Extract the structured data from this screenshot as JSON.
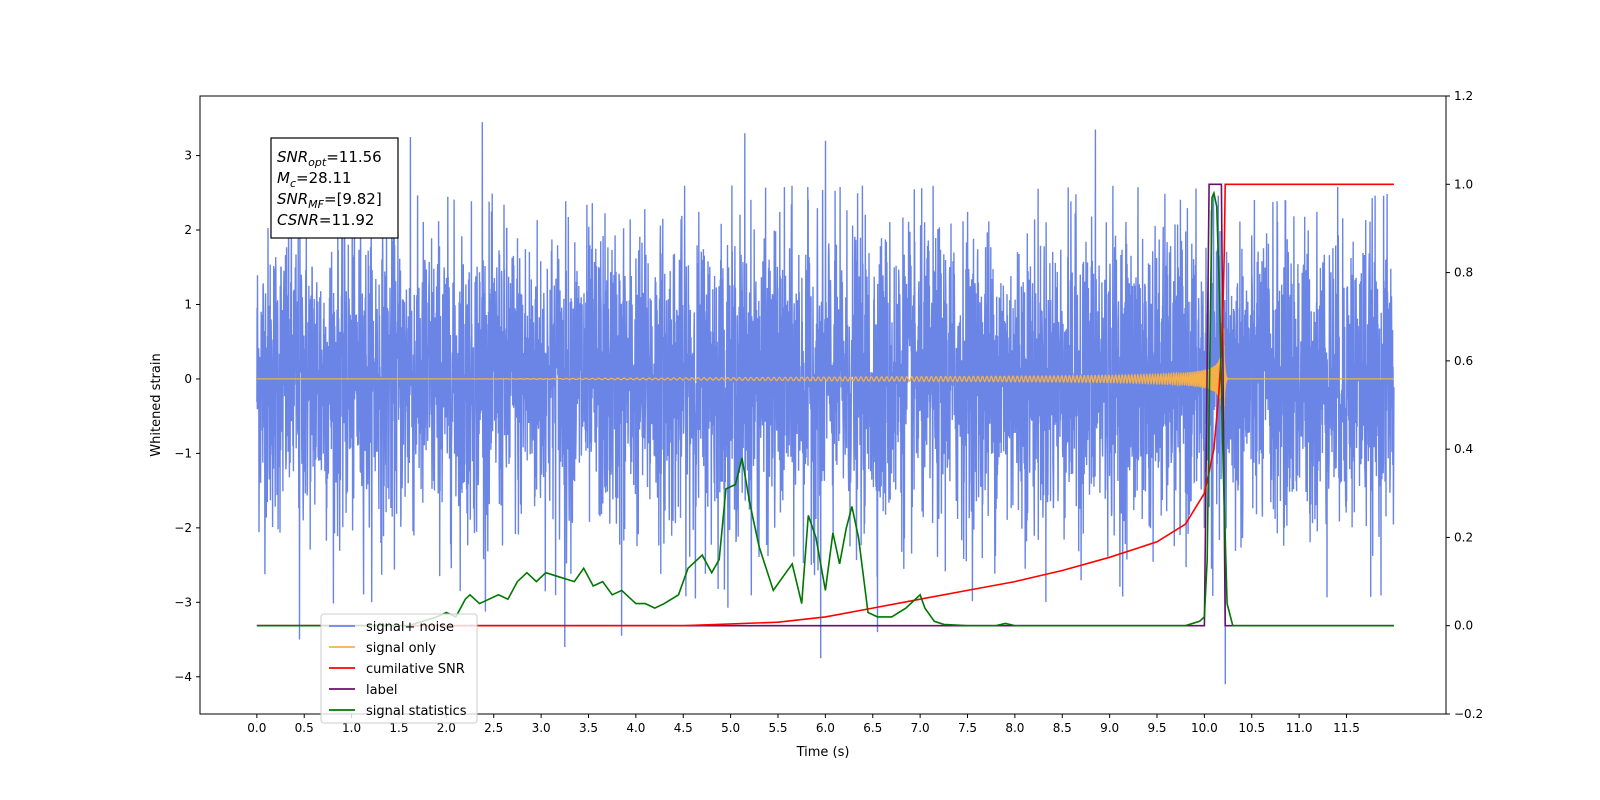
{
  "chart_data": {
    "type": "line",
    "xlabel": "Time (s)",
    "ylabel": "Whitened strain",
    "xlim": [
      -0.6,
      12.55
    ],
    "ylim": [
      -4.5,
      3.8
    ],
    "ylim_right": [
      -0.2,
      1.2
    ],
    "x_ticks": [
      0.0,
      0.5,
      1.0,
      1.5,
      2.0,
      2.5,
      3.0,
      3.5,
      4.0,
      4.5,
      5.0,
      5.5,
      6.0,
      6.5,
      7.0,
      7.5,
      8.0,
      8.5,
      9.0,
      9.5,
      10.0,
      10.5,
      11.0,
      11.5
    ],
    "x_tick_labels": [
      "0.0",
      "0.5",
      "1.0",
      "1.5",
      "2.0",
      "2.5",
      "3.0",
      "3.5",
      "4.0",
      "4.5",
      "5.0",
      "5.5",
      "6.0",
      "6.5",
      "7.0",
      "7.5",
      "8.0",
      "8.5",
      "9.0",
      "9.5",
      "10.0",
      "10.5",
      "11.0",
      "11.5"
    ],
    "y_ticks": [
      -4,
      -3,
      -2,
      -1,
      0,
      1,
      2,
      3
    ],
    "y_tick_labels": [
      "−4",
      "−3",
      "−2",
      "−1",
      "0",
      "1",
      "2",
      "3"
    ],
    "y_right_ticks": [
      -0.2,
      0.0,
      0.2,
      0.4,
      0.6,
      0.8,
      1.0,
      1.2
    ],
    "y_right_tick_labels": [
      "−0.2",
      "0.0",
      "0.2",
      "0.4",
      "0.6",
      "0.8",
      "1.0",
      "1.2"
    ],
    "legend": {
      "placement": "lower-left",
      "entries": [
        {
          "label": "signal+ noise",
          "color": "#6a85e6"
        },
        {
          "label": "signal only",
          "color": "#f5b04a"
        },
        {
          "label": "cumilative SNR",
          "color": "#ff0000"
        },
        {
          "label": "label",
          "color": "#6b0f6b"
        },
        {
          "label": "signal statistics",
          "color": "#007700"
        }
      ]
    },
    "annotation": {
      "lines": [
        {
          "sym": "SNR",
          "sub": "opt",
          "value": "=11.56"
        },
        {
          "sym": "M",
          "sub": "c",
          "value": "=28.11"
        },
        {
          "sym": "SNR",
          "sub": "MF",
          "value": "=[9.82]"
        },
        {
          "sym": "CSNR",
          "sub": "",
          "value": "=11.92"
        }
      ]
    },
    "series": [
      {
        "name": "signal+ noise",
        "axis": "left",
        "color": "#6a85e6",
        "x_range": [
          0.0,
          12.0
        ],
        "noise_std": 1.0,
        "peaks": [
          {
            "x": 2.38,
            "y": 3.45
          },
          {
            "x": 1.62,
            "y": 3.25
          },
          {
            "x": 5.15,
            "y": 3.3
          },
          {
            "x": 8.85,
            "y": 3.35
          },
          {
            "x": 6.0,
            "y": 3.2
          },
          {
            "x": 0.45,
            "y": -3.5
          },
          {
            "x": 3.25,
            "y": -3.6
          },
          {
            "x": 5.95,
            "y": -3.75
          },
          {
            "x": 10.22,
            "y": -4.1
          },
          {
            "x": 3.85,
            "y": -3.45
          },
          {
            "x": 6.55,
            "y": -3.4
          }
        ]
      },
      {
        "name": "signal only",
        "axis": "left",
        "color": "#f5b04a",
        "x_range": [
          0.0,
          12.0
        ],
        "merger_time": 10.2,
        "peak_amplitude": 1.1
      },
      {
        "name": "cumilative SNR",
        "axis": "right",
        "x": [
          0.0,
          4.5,
          5.5,
          6.0,
          6.5,
          7.0,
          7.5,
          8.0,
          8.5,
          9.0,
          9.5,
          9.8,
          10.0,
          10.1,
          10.15,
          10.18,
          10.2,
          10.21,
          10.22,
          12.0
        ],
        "y": [
          0.0,
          0.0,
          0.008,
          0.02,
          0.04,
          0.06,
          0.08,
          0.1,
          0.125,
          0.155,
          0.19,
          0.23,
          0.3,
          0.4,
          0.52,
          0.62,
          0.75,
          0.85,
          1.0,
          1.0
        ]
      },
      {
        "name": "label",
        "axis": "right",
        "x": [
          0.0,
          10.0,
          10.05,
          10.18,
          10.22,
          12.0
        ],
        "y": [
          0.0,
          0.0,
          1.0,
          1.0,
          0.0,
          0.0
        ]
      },
      {
        "name": "signal statistics",
        "axis": "right",
        "x": [
          0.0,
          1.6,
          1.9,
          2.0,
          2.1,
          2.2,
          2.25,
          2.35,
          2.45,
          2.55,
          2.65,
          2.75,
          2.85,
          2.95,
          3.05,
          3.2,
          3.35,
          3.45,
          3.55,
          3.65,
          3.75,
          3.85,
          4.0,
          4.1,
          4.2,
          4.3,
          4.45,
          4.55,
          4.7,
          4.8,
          4.88,
          4.95,
          5.05,
          5.12,
          5.2,
          5.3,
          5.45,
          5.55,
          5.65,
          5.75,
          5.82,
          5.9,
          6.0,
          6.08,
          6.15,
          6.22,
          6.28,
          6.35,
          6.45,
          6.55,
          6.7,
          6.85,
          7.0,
          7.05,
          7.15,
          7.25,
          7.5,
          7.8,
          7.9,
          8.0,
          9.8,
          9.95,
          10.0,
          10.03,
          10.06,
          10.08,
          10.1,
          10.13,
          10.16,
          10.2,
          10.24,
          10.3,
          12.0
        ],
        "y": [
          0.0,
          0.0,
          0.02,
          0.03,
          0.02,
          0.06,
          0.07,
          0.05,
          0.06,
          0.07,
          0.06,
          0.1,
          0.12,
          0.1,
          0.12,
          0.11,
          0.1,
          0.13,
          0.09,
          0.1,
          0.07,
          0.08,
          0.05,
          0.05,
          0.04,
          0.05,
          0.07,
          0.13,
          0.16,
          0.12,
          0.15,
          0.31,
          0.32,
          0.38,
          0.28,
          0.18,
          0.08,
          0.11,
          0.14,
          0.05,
          0.25,
          0.2,
          0.08,
          0.21,
          0.14,
          0.22,
          0.27,
          0.2,
          0.03,
          0.02,
          0.02,
          0.04,
          0.07,
          0.04,
          0.01,
          0.003,
          0.0,
          0.0,
          0.005,
          0.0,
          0.0,
          0.01,
          0.02,
          0.15,
          0.65,
          0.97,
          0.98,
          0.95,
          0.75,
          0.35,
          0.05,
          0.0,
          0.0
        ]
      }
    ]
  }
}
